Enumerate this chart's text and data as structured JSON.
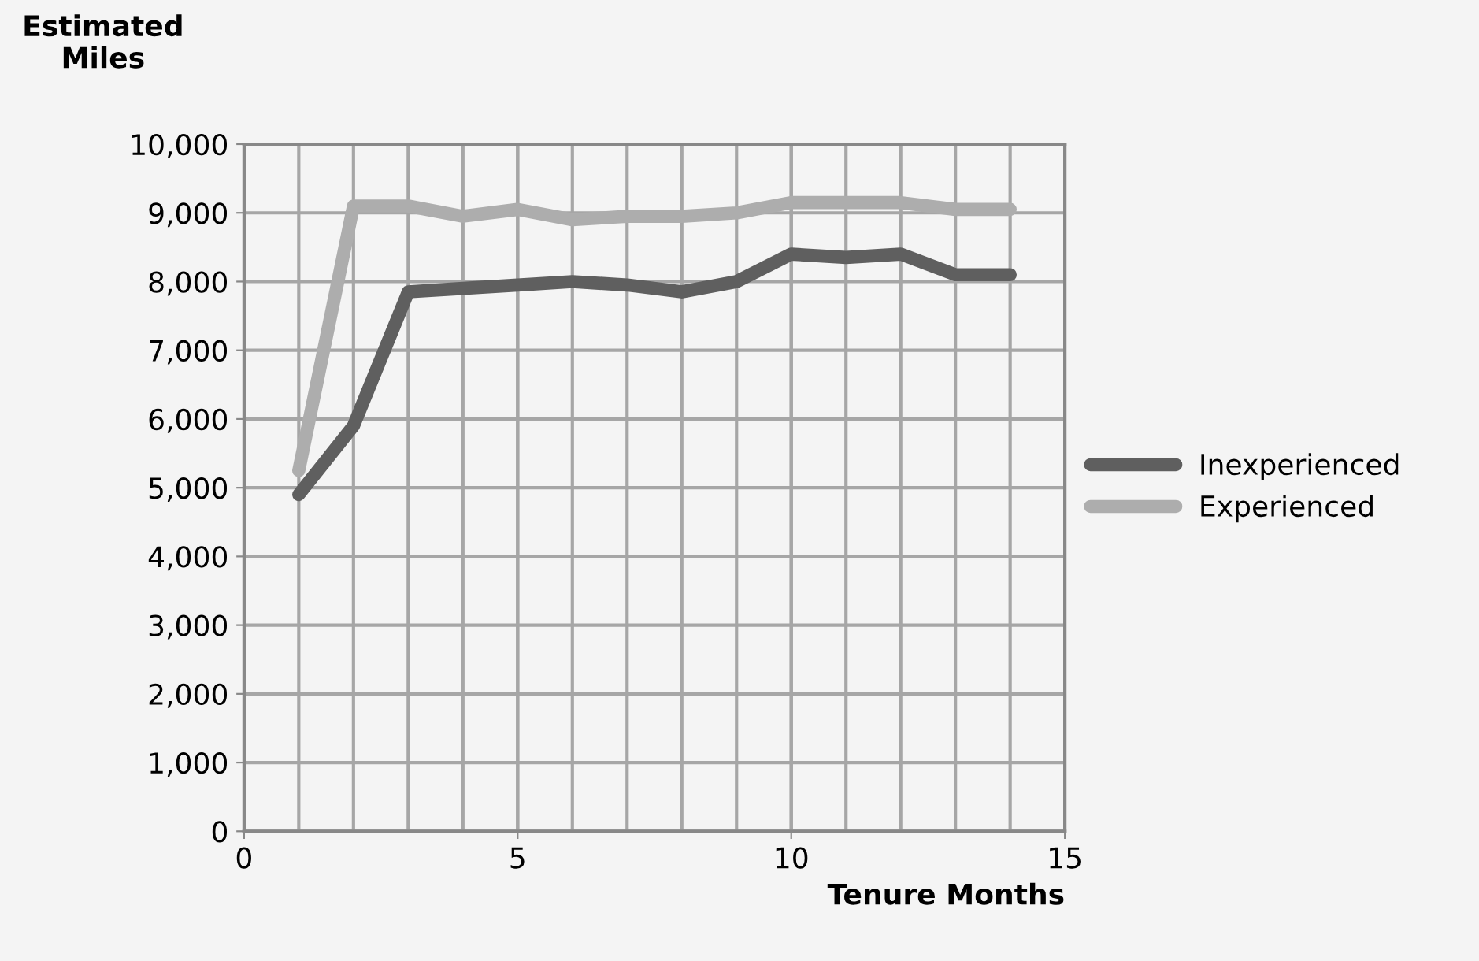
{
  "chart_data": {
    "type": "line",
    "ylabel": "Estimated\nMiles",
    "xlabel": "Tenure Months",
    "x": [
      1,
      2,
      3,
      4,
      5,
      6,
      7,
      8,
      9,
      10,
      11,
      12,
      13,
      14
    ],
    "series": [
      {
        "name": "Inexperienced",
        "color": "#5f5f5f",
        "values": [
          4900,
          5900,
          7850,
          7900,
          7950,
          8000,
          7950,
          7850,
          8000,
          8400,
          8350,
          8400,
          8100,
          8100
        ]
      },
      {
        "name": "Experienced",
        "color": "#adadad",
        "values": [
          5250,
          9100,
          9100,
          8950,
          9050,
          8900,
          8950,
          8950,
          9000,
          9150,
          9150,
          9150,
          9050,
          9050
        ]
      }
    ],
    "xlim": [
      0,
      15
    ],
    "xticks": [
      0,
      5,
      10,
      15
    ],
    "ylim": [
      0,
      10000
    ],
    "yticks": [
      {
        "value": 0,
        "label": "0"
      },
      {
        "value": 1000,
        "label": "1,000"
      },
      {
        "value": 2000,
        "label": "2,000"
      },
      {
        "value": 3000,
        "label": "3,000"
      },
      {
        "value": 4000,
        "label": "4,000"
      },
      {
        "value": 5000,
        "label": "5,000"
      },
      {
        "value": 6000,
        "label": "6,000"
      },
      {
        "value": 7000,
        "label": "7,000"
      },
      {
        "value": 8000,
        "label": "8,000"
      },
      {
        "value": 9000,
        "label": "9,000"
      },
      {
        "value": 10000,
        "label": "10,000"
      }
    ],
    "grid": true,
    "legend": "right",
    "marker": "none",
    "line_style": "solid"
  }
}
